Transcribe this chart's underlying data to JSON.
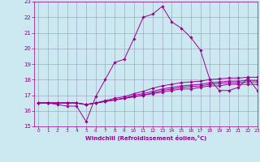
{
  "xlabel": "Windchill (Refroidissement éolien,°C)",
  "x": [
    0,
    1,
    2,
    3,
    4,
    5,
    6,
    7,
    8,
    9,
    10,
    11,
    12,
    13,
    14,
    15,
    16,
    17,
    18,
    19,
    20,
    21,
    22,
    23
  ],
  "line1": [
    16.5,
    16.5,
    16.4,
    16.3,
    16.3,
    15.3,
    16.9,
    18.0,
    19.1,
    19.3,
    20.6,
    22.0,
    22.2,
    22.7,
    21.7,
    21.3,
    20.7,
    19.9,
    18.0,
    17.3,
    17.3,
    17.5,
    18.1,
    17.3
  ],
  "line2": [
    16.5,
    16.5,
    16.5,
    16.5,
    16.5,
    16.4,
    16.5,
    16.6,
    16.7,
    16.8,
    16.9,
    17.0,
    17.1,
    17.2,
    17.3,
    17.4,
    17.4,
    17.5,
    17.6,
    17.6,
    17.7,
    17.7,
    17.7,
    17.7
  ],
  "line3": [
    16.5,
    16.5,
    16.5,
    16.5,
    16.5,
    16.4,
    16.5,
    16.6,
    16.7,
    16.8,
    16.9,
    17.0,
    17.15,
    17.3,
    17.4,
    17.5,
    17.55,
    17.6,
    17.7,
    17.75,
    17.8,
    17.8,
    17.85,
    17.85
  ],
  "line4": [
    16.5,
    16.5,
    16.5,
    16.5,
    16.5,
    16.4,
    16.5,
    16.6,
    16.7,
    16.8,
    17.0,
    17.1,
    17.25,
    17.4,
    17.5,
    17.6,
    17.65,
    17.7,
    17.8,
    17.85,
    17.9,
    17.9,
    17.95,
    17.95
  ],
  "line5": [
    16.5,
    16.5,
    16.5,
    16.5,
    16.5,
    16.4,
    16.5,
    16.65,
    16.8,
    16.9,
    17.1,
    17.25,
    17.45,
    17.6,
    17.7,
    17.8,
    17.85,
    17.9,
    18.0,
    18.05,
    18.1,
    18.1,
    18.15,
    18.15
  ],
  "line_color": "#990099",
  "bg_color": "#cce8f0",
  "grid_color": "#9999bb",
  "ylim": [
    15,
    23
  ],
  "xlim": [
    -0.5,
    23
  ],
  "yticks": [
    15,
    16,
    17,
    18,
    19,
    20,
    21,
    22,
    23
  ],
  "xticks": [
    0,
    1,
    2,
    3,
    4,
    5,
    6,
    7,
    8,
    9,
    10,
    11,
    12,
    13,
    14,
    15,
    16,
    17,
    18,
    19,
    20,
    21,
    22,
    23
  ]
}
